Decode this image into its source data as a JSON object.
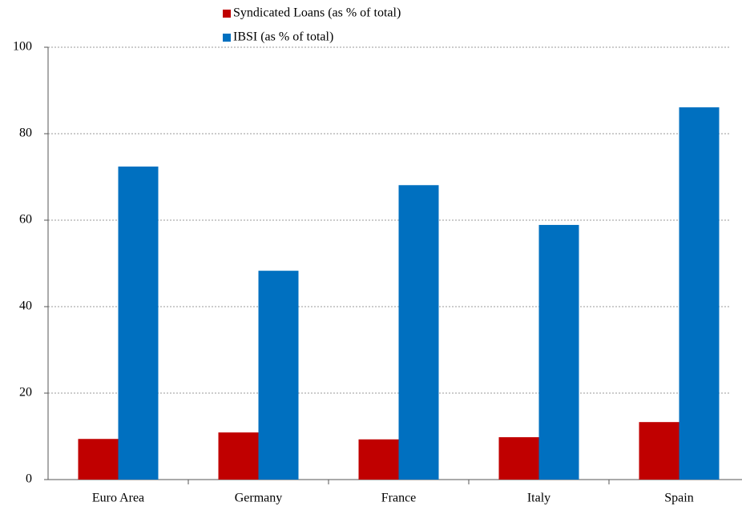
{
  "chart_data": {
    "type": "bar",
    "categories": [
      "Euro Area",
      "Germany",
      "France",
      "Italy",
      "Spain"
    ],
    "series": [
      {
        "name": "Syndicated Loans (as % of total)",
        "color": "#c00000",
        "values": [
          9.4,
          10.9,
          9.3,
          9.8,
          13.3
        ]
      },
      {
        "name": "IBSI (as % of total)",
        "color": "#0070c0",
        "values": [
          72.4,
          48.3,
          68.1,
          58.9,
          86.1
        ]
      }
    ],
    "ylim": [
      0,
      100
    ],
    "yticks": [
      0,
      20,
      40,
      60,
      80,
      100
    ],
    "grid": true
  }
}
